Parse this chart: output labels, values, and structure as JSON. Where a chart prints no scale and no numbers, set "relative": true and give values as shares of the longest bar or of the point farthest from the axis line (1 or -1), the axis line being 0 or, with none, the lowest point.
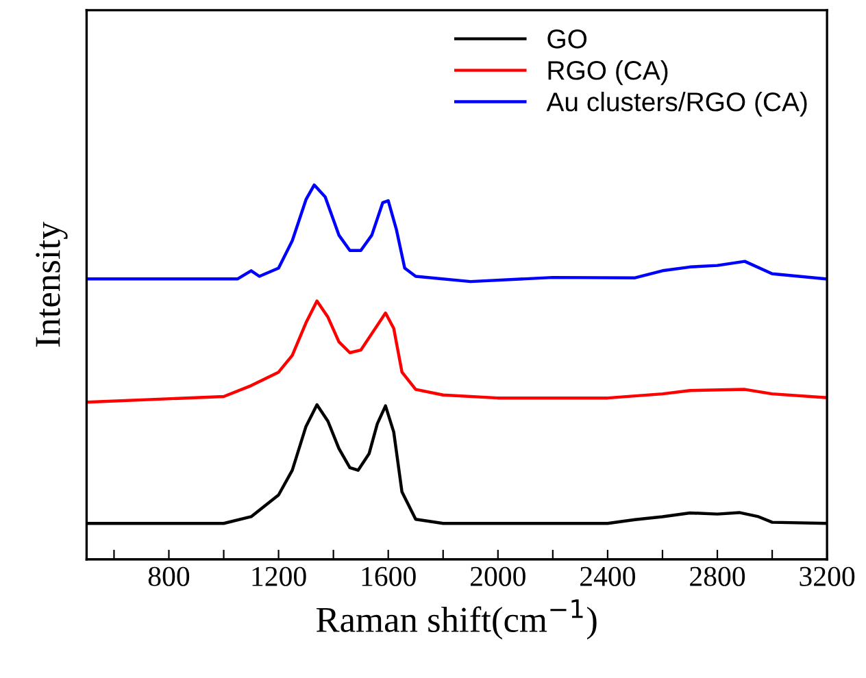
{
  "chart_data": {
    "type": "line",
    "relative": true,
    "xlabel": "Raman shift(cm$^{−1}$)",
    "ylabel": "Intensity",
    "xlim": [
      500,
      3200
    ],
    "xticks": [
      {
        "value": 600,
        "label": null
      },
      800,
      {
        "value": 1000,
        "label": null
      },
      1200,
      {
        "value": 1400,
        "label": null
      },
      1600,
      {
        "value": 1800,
        "label": null
      },
      2000,
      {
        "value": 2200,
        "label": null
      },
      2400,
      {
        "value": 2600,
        "label": null
      },
      2800,
      {
        "value": 3000,
        "label": null
      },
      3200
    ],
    "tick_labels": "x",
    "legend": "top right",
    "grid": false,
    "series": [
      {
        "name": "GO",
        "color": "#000000",
        "x": [
          500,
          1000,
          1100,
          1200,
          1250,
          1300,
          1340,
          1380,
          1420,
          1460,
          1490,
          1530,
          1560,
          1590,
          1620,
          1650,
          1700,
          1800,
          2400,
          2500,
          2600,
          2700,
          2800,
          2880,
          2950,
          3000,
          3200
        ],
        "values": [
          0.096,
          0.096,
          0.114,
          0.172,
          0.238,
          0.355,
          0.413,
          0.369,
          0.296,
          0.245,
          0.238,
          0.282,
          0.362,
          0.41,
          0.34,
          0.18,
          0.107,
          0.096,
          0.096,
          0.106,
          0.114,
          0.124,
          0.121,
          0.125,
          0.114,
          0.099,
          0.096
        ]
      },
      {
        "name": "RGO (CA)",
        "color": "#ff0000",
        "x": [
          500,
          1000,
          1100,
          1200,
          1250,
          1300,
          1340,
          1380,
          1420,
          1460,
          1500,
          1540,
          1590,
          1620,
          1650,
          1700,
          1800,
          2000,
          2400,
          2600,
          2700,
          2900,
          3000,
          3200
        ],
        "values": [
          0.42,
          0.435,
          0.464,
          0.5,
          0.545,
          0.632,
          0.69,
          0.647,
          0.581,
          0.552,
          0.559,
          0.603,
          0.658,
          0.617,
          0.5,
          0.454,
          0.439,
          0.431,
          0.431,
          0.442,
          0.451,
          0.454,
          0.442,
          0.432
        ]
      },
      {
        "name": "Au clusters/RGO (CA)",
        "color": "#0000ff",
        "x": [
          500,
          1050,
          1100,
          1130,
          1200,
          1250,
          1300,
          1330,
          1370,
          1420,
          1460,
          1500,
          1540,
          1580,
          1600,
          1630,
          1660,
          1700,
          1900,
          2200,
          2500,
          2600,
          2700,
          2800,
          2900,
          3000,
          3200
        ],
        "values": [
          0.749,
          0.749,
          0.771,
          0.756,
          0.778,
          0.851,
          0.961,
          1.0,
          0.968,
          0.866,
          0.825,
          0.825,
          0.866,
          0.953,
          0.958,
          0.88,
          0.778,
          0.756,
          0.742,
          0.753,
          0.752,
          0.771,
          0.781,
          0.785,
          0.796,
          0.763,
          0.749
        ]
      }
    ]
  }
}
